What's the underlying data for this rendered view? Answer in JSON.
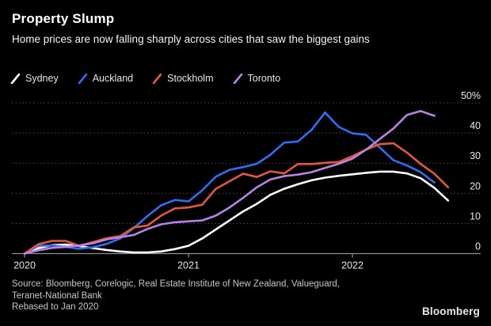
{
  "header": {
    "title": "Property Slump",
    "subtitle": "Home prices are now falling sharply across cities that saw the biggest gains"
  },
  "chart_data": {
    "type": "line",
    "title": "Property Slump",
    "subtitle": "Home prices are now falling sharply across cities that saw the biggest gains",
    "x_unit": "month",
    "x_start": "2020-01",
    "x_end": "2022-08",
    "ylim": [
      0,
      50
    ],
    "grid": "horizontal-dotted",
    "legend_position": "top-left",
    "x_ticks": [
      {
        "label": "2020",
        "month_index": 0
      },
      {
        "label": "2021",
        "month_index": 12
      },
      {
        "label": "2022",
        "month_index": 24
      }
    ],
    "y_ticks": [
      {
        "value": 0,
        "label": "0"
      },
      {
        "value": 10,
        "label": "10"
      },
      {
        "value": 20,
        "label": "20"
      },
      {
        "value": 30,
        "label": "30"
      },
      {
        "value": 40,
        "label": "40"
      },
      {
        "value": 50,
        "label": "50%"
      }
    ],
    "series": [
      {
        "name": "Sydney",
        "color": "#ffffff",
        "values": [
          0,
          1.8,
          2.8,
          3.0,
          2.5,
          1.8,
          1.2,
          0.7,
          0.4,
          0.4,
          0.7,
          1.5,
          2.6,
          5.0,
          8.0,
          11.0,
          14.0,
          16.5,
          19.5,
          21.5,
          23.0,
          24.3,
          25.2,
          25.8,
          26.3,
          26.8,
          27.2,
          27.2,
          26.6,
          25.0,
          21.8,
          17.6
        ]
      },
      {
        "name": "Auckland",
        "color": "#2e6ef3",
        "values": [
          0,
          2.6,
          2.7,
          2.2,
          1.6,
          2.1,
          3.2,
          5.0,
          8.5,
          12.5,
          16.0,
          17.8,
          17.3,
          21.0,
          25.5,
          27.8,
          28.7,
          29.8,
          32.8,
          36.8,
          37.2,
          41.0,
          46.8,
          42.0,
          39.9,
          39.4,
          35.2,
          31.0,
          29.2,
          27.0,
          23.6
        ]
      },
      {
        "name": "Stockholm",
        "color": "#e5583b",
        "values": [
          0,
          3.1,
          4.2,
          4.2,
          2.6,
          3.8,
          5.1,
          5.8,
          8.7,
          9.3,
          12.6,
          15.0,
          15.3,
          16.2,
          21.5,
          24.0,
          26.5,
          25.4,
          27.3,
          26.6,
          29.7,
          29.7,
          30.1,
          30.4,
          32.3,
          34.5,
          36.3,
          36.6,
          33.5,
          29.7,
          26.5,
          22.0
        ]
      },
      {
        "name": "Toronto",
        "color": "#b983e6",
        "values": [
          0,
          1.1,
          1.9,
          2.2,
          2.7,
          3.4,
          4.7,
          5.4,
          6.2,
          8.2,
          9.7,
          10.4,
          10.7,
          11.0,
          12.6,
          15.3,
          18.5,
          22.0,
          24.6,
          25.7,
          26.2,
          27.0,
          28.4,
          29.8,
          31.5,
          34.5,
          38.0,
          41.5,
          46.0,
          47.3,
          45.7
        ]
      }
    ]
  },
  "footer": {
    "source_line1": "Source: Bloomberg, Corelogic, Real Estate Institute of New Zealand, Valueguard,",
    "source_line2": "Teranet-National Bank",
    "note": "Rebased to Jan 2020",
    "logo": "Bloomberg"
  }
}
